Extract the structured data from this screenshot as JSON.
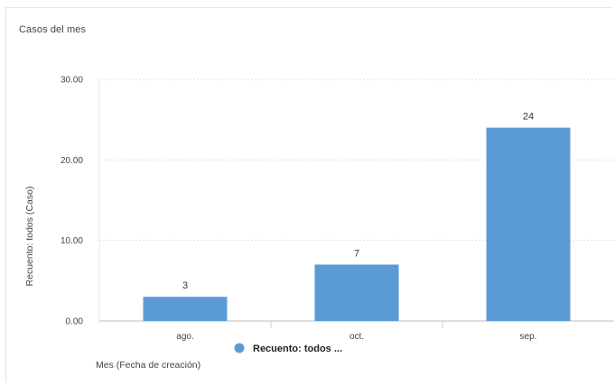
{
  "chart_data": {
    "type": "bar",
    "title": "Casos del mes",
    "xlabel": "Mes (Fecha de creación)",
    "ylabel": "Recuento: todos (Caso)",
    "categories": [
      "ago.",
      "oct.",
      "sep."
    ],
    "series": [
      {
        "name": "Recuento: todos ...",
        "values": [
          3,
          7,
          24
        ],
        "data_labels": [
          "3",
          "7",
          "24"
        ],
        "color": "#5b9bd5"
      }
    ],
    "ylim": [
      0,
      30
    ],
    "yticks": [
      0,
      10,
      20,
      30
    ],
    "ytick_labels": [
      "0.00",
      "10.00",
      "20.00",
      "30.00"
    ],
    "grid": true,
    "legend_position": "bottom-center"
  }
}
